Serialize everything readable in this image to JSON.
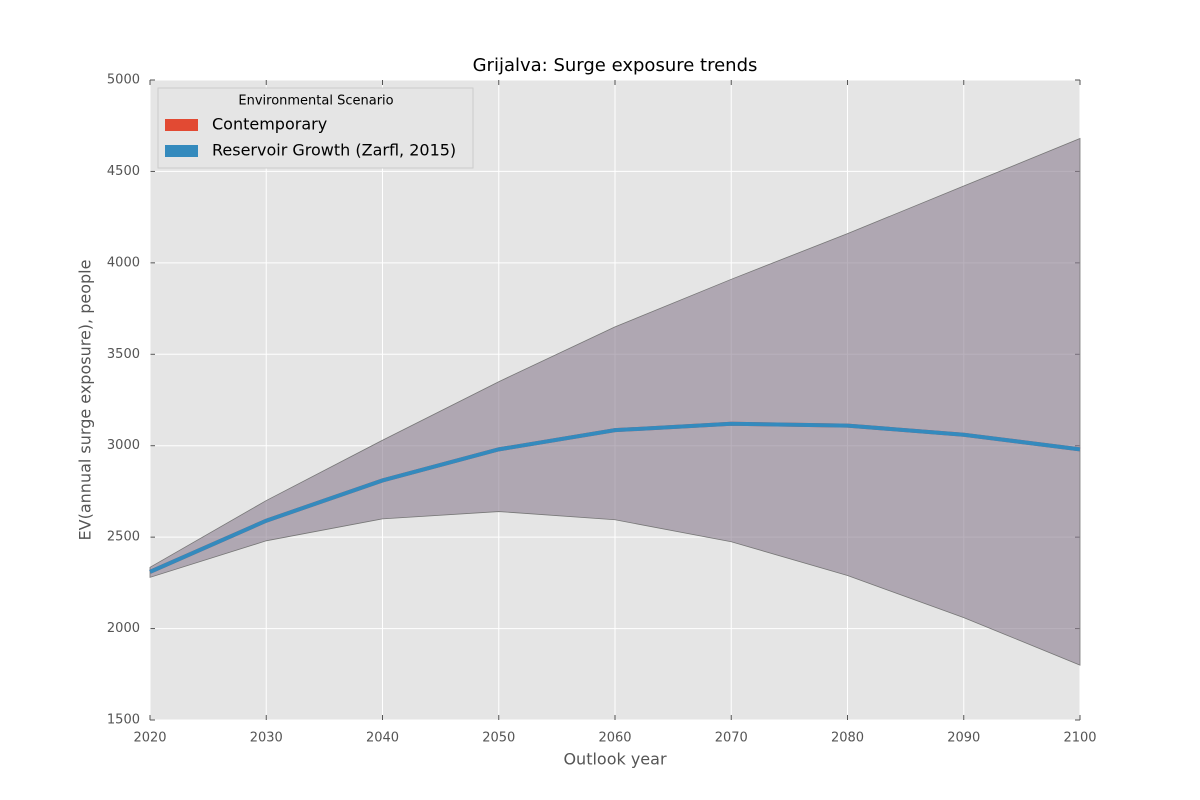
{
  "chart_data": {
    "type": "line",
    "title": "Grijalva: Surge exposure trends",
    "x_label": "Outlook year",
    "y_label": "EV(annual surge exposure), people",
    "legend_title": "Environmental Scenario",
    "legend": "upper left",
    "grid": true,
    "x": [
      2020,
      2030,
      2040,
      2050,
      2060,
      2070,
      2080,
      2090,
      2100
    ],
    "series": [
      {
        "name": "Contemporary",
        "color": "#e24a33",
        "values": [
          2310,
          2590,
          2810,
          2980,
          3085,
          3120,
          3110,
          3060,
          2980
        ]
      },
      {
        "name": "Reservoir Growth (Zarfl, 2015)",
        "color": "#348abd",
        "values": [
          2310,
          2590,
          2810,
          2980,
          3085,
          3120,
          3110,
          3060,
          2980
        ]
      }
    ],
    "band": {
      "color": "#8b7d8f",
      "upper": [
        2335,
        2700,
        3030,
        3350,
        3650,
        3910,
        4160,
        4420,
        4680
      ],
      "lower": [
        2280,
        2480,
        2600,
        2640,
        2595,
        2475,
        2290,
        2060,
        1800
      ]
    },
    "xlim": [
      2020,
      2100
    ],
    "xticks": [
      2020,
      2030,
      2040,
      2050,
      2060,
      2070,
      2080,
      2090,
      2100
    ],
    "ylim": [
      1500,
      5000
    ],
    "yticks": [
      1500,
      2000,
      2500,
      3000,
      3500,
      4000,
      4500,
      5000
    ]
  }
}
